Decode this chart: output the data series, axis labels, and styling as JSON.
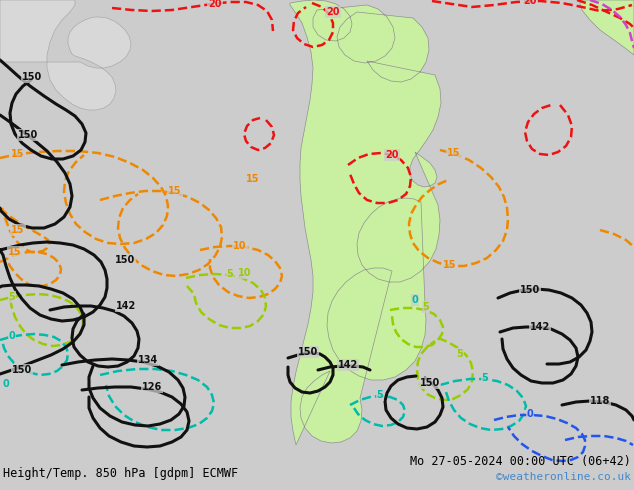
{
  "title_left": "Height/Temp. 850 hPa [gdpm] ECMWF",
  "title_right": "Mo 27-05-2024 00:00 UTC (06+42)",
  "credit": "©weatheronline.co.uk",
  "bg_color": "#cccccc",
  "land_green": "#c8f0a0",
  "land_gray": "#d0d0d0",
  "title_fontsize": 8.5,
  "credit_fontsize": 8,
  "credit_color": "#4488cc"
}
